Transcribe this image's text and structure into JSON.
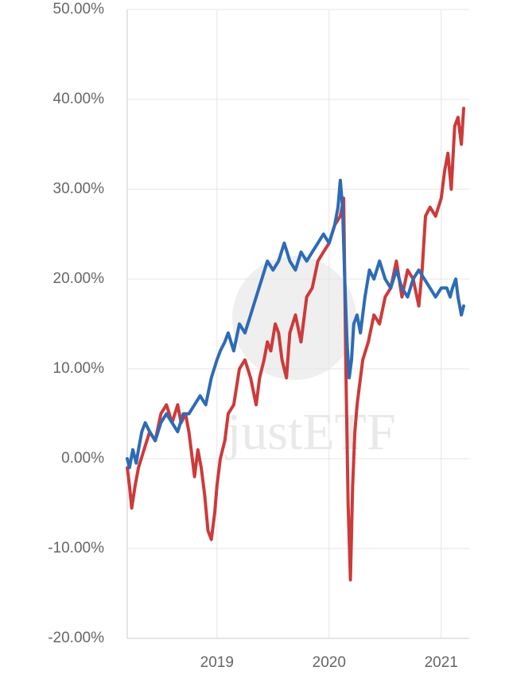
{
  "chart_data": {
    "type": "line",
    "y_format": "percent_2dp",
    "ylim": [
      -20,
      50
    ],
    "yticks": [
      -20,
      -10,
      0,
      10,
      20,
      30,
      40,
      50
    ],
    "yticks_labels": [
      "-20.00%",
      "-10.00%",
      "0.00%",
      "10.00%",
      "20.00%",
      "30.00%",
      "40.00%",
      "50.00%"
    ],
    "xlim": [
      2018.2,
      2021.25
    ],
    "xticks": [
      2019,
      2020,
      2021
    ],
    "xticks_labels": [
      "2019",
      "2020",
      "2021"
    ],
    "grid": true,
    "watermark": "justETF",
    "series": [
      {
        "color": "#cd3a3a",
        "x": [
          2018.2,
          2018.22,
          2018.24,
          2018.27,
          2018.3,
          2018.35,
          2018.4,
          2018.45,
          2018.5,
          2018.55,
          2018.6,
          2018.65,
          2018.68,
          2018.72,
          2018.75,
          2018.78,
          2018.8,
          2018.83,
          2018.86,
          2018.89,
          2018.92,
          2018.95,
          2018.98,
          2019.0,
          2019.03,
          2019.07,
          2019.1,
          2019.15,
          2019.2,
          2019.25,
          2019.3,
          2019.35,
          2019.38,
          2019.42,
          2019.45,
          2019.48,
          2019.52,
          2019.55,
          2019.58,
          2019.62,
          2019.65,
          2019.7,
          2019.75,
          2019.8,
          2019.85,
          2019.9,
          2019.95,
          2020.0,
          2020.05,
          2020.1,
          2020.13,
          2020.15,
          2020.17,
          2020.19,
          2020.21,
          2020.23,
          2020.25,
          2020.27,
          2020.3,
          2020.35,
          2020.4,
          2020.45,
          2020.5,
          2020.55,
          2020.6,
          2020.65,
          2020.7,
          2020.75,
          2020.8,
          2020.83,
          2020.86,
          2020.9,
          2020.95,
          2021.0,
          2021.03,
          2021.06,
          2021.09,
          2021.12,
          2021.15,
          2021.18,
          2021.2
        ],
        "values": [
          -1,
          -3,
          -5.5,
          -3,
          -1,
          1,
          3,
          2,
          5,
          6,
          4,
          6,
          4,
          5,
          3,
          0,
          -2,
          1,
          -1,
          -4,
          -8,
          -9,
          -6,
          -3,
          0,
          2,
          5,
          6,
          10,
          11,
          9,
          6,
          9,
          11,
          13,
          12,
          15,
          14,
          11,
          9,
          14,
          16,
          13,
          18,
          19,
          22,
          23,
          24,
          26,
          27,
          29,
          10,
          -5,
          -13.5,
          -3,
          3,
          6,
          8,
          11,
          13,
          16,
          15,
          18,
          19,
          22,
          18,
          21,
          20,
          17,
          21,
          27,
          28,
          27,
          29,
          32,
          34,
          30,
          37,
          38,
          35,
          39
        ]
      },
      {
        "color": "#2e6bb5",
        "x": [
          2018.2,
          2018.22,
          2018.25,
          2018.28,
          2018.3,
          2018.33,
          2018.36,
          2018.4,
          2018.45,
          2018.5,
          2018.55,
          2018.6,
          2018.65,
          2018.7,
          2018.75,
          2018.8,
          2018.85,
          2018.9,
          2018.95,
          2019.0,
          2019.03,
          2019.07,
          2019.1,
          2019.15,
          2019.2,
          2019.25,
          2019.3,
          2019.35,
          2019.4,
          2019.45,
          2019.5,
          2019.55,
          2019.6,
          2019.65,
          2019.7,
          2019.75,
          2019.8,
          2019.85,
          2019.9,
          2019.95,
          2020.0,
          2020.05,
          2020.08,
          2020.1,
          2020.12,
          2020.14,
          2020.16,
          2020.18,
          2020.2,
          2020.22,
          2020.25,
          2020.28,
          2020.32,
          2020.36,
          2020.4,
          2020.45,
          2020.5,
          2020.55,
          2020.6,
          2020.65,
          2020.7,
          2020.75,
          2020.8,
          2020.85,
          2020.9,
          2020.95,
          2021.0,
          2021.05,
          2021.08,
          2021.1,
          2021.13,
          2021.15,
          2021.18,
          2021.2
        ],
        "values": [
          0,
          -1,
          1,
          -0.5,
          1,
          3,
          4,
          3,
          2,
          4,
          5,
          4,
          3,
          5,
          5,
          6,
          7,
          6,
          9,
          11,
          12,
          13,
          14,
          12,
          15,
          14,
          16,
          18,
          20,
          22,
          21,
          22,
          24,
          22,
          21,
          23,
          22,
          23,
          24,
          25,
          24,
          26,
          28,
          31,
          28,
          20,
          13,
          9,
          11,
          15,
          16,
          14,
          18,
          21,
          20,
          22,
          20,
          19,
          21,
          19,
          18,
          20,
          21,
          20,
          19,
          18,
          19,
          19,
          18,
          19,
          20,
          18,
          16,
          17
        ]
      }
    ]
  }
}
